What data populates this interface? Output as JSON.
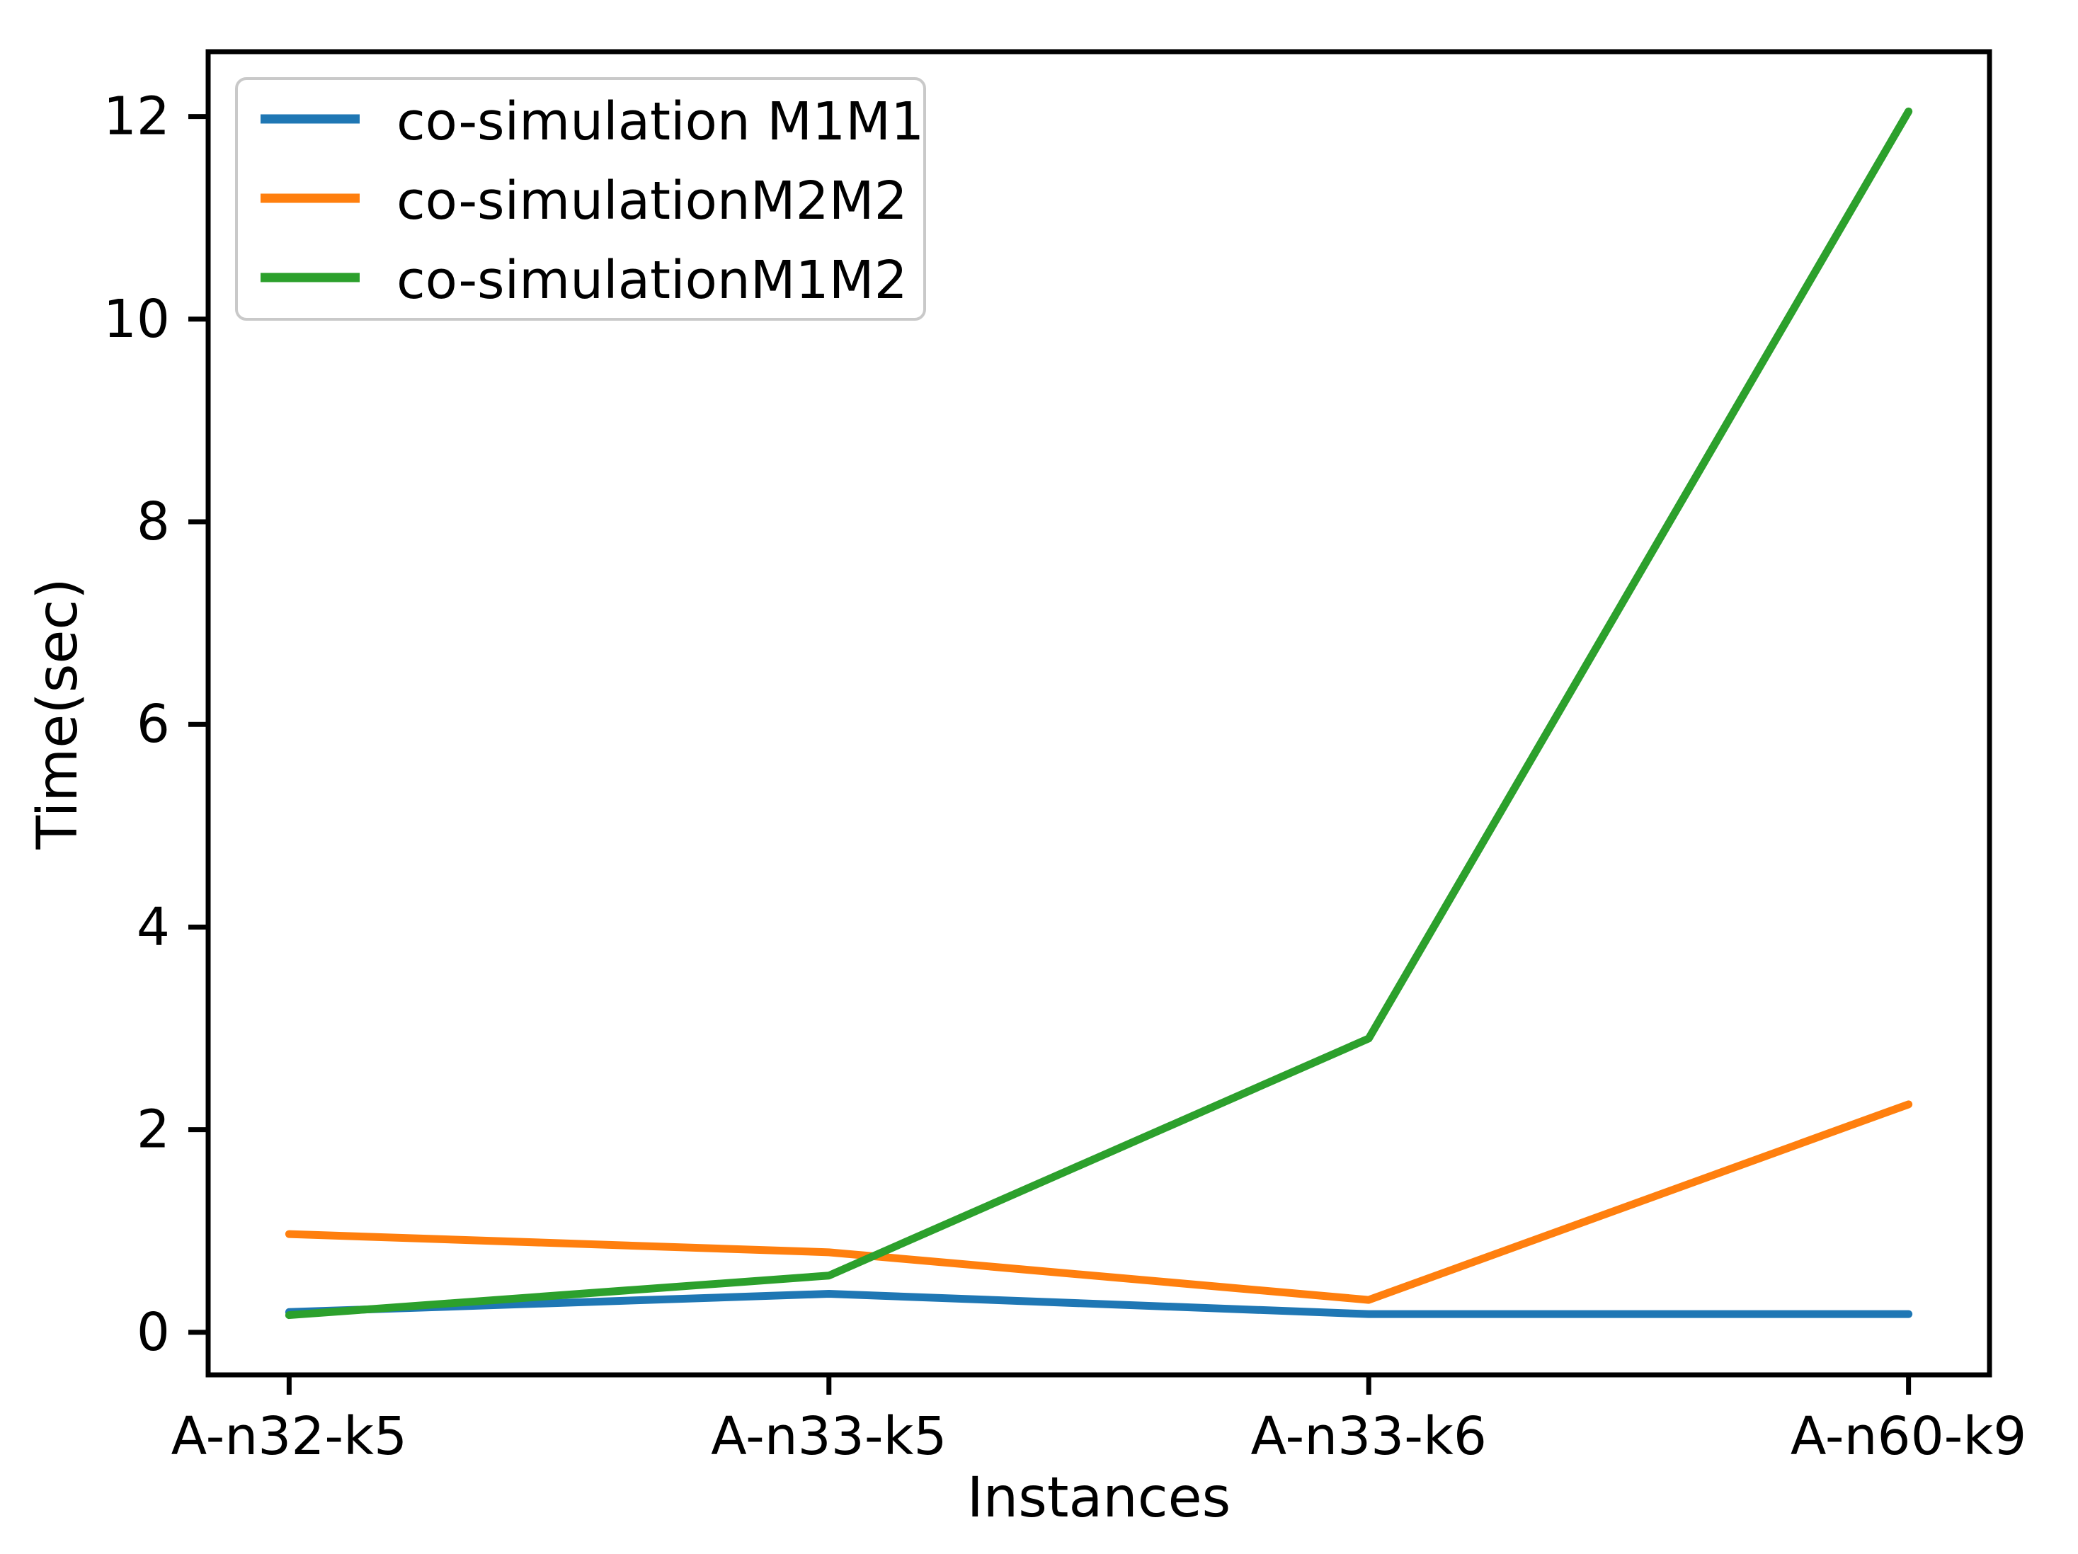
{
  "figure": {
    "background": "#ffffff"
  },
  "chart_data": {
    "type": "line",
    "title": "",
    "xlabel": "Instances",
    "ylabel": "Time(sec)",
    "categories": [
      "A-n32-k5",
      "A-n33-k5",
      "A-n33-k6",
      "A-n60-k9"
    ],
    "series": [
      {
        "name": "co-simulation M1M1",
        "color": "#1f77b4",
        "values": [
          0.2,
          0.38,
          0.18,
          0.18
        ]
      },
      {
        "name": "co-simulationM2M2",
        "color": "#ff7f0e",
        "values": [
          0.97,
          0.79,
          0.32,
          2.25
        ]
      },
      {
        "name": "co-simulationM1M2",
        "color": "#2ca02c",
        "values": [
          0.17,
          0.56,
          2.9,
          12.05
        ]
      }
    ],
    "yticks": [
      0,
      2,
      4,
      6,
      8,
      10,
      12
    ],
    "ylim": [
      -0.42,
      12.64
    ],
    "grid": false,
    "legend_position": "upper-left",
    "axis_color": "#000000",
    "legend_border_color": "#c9c9c9"
  }
}
